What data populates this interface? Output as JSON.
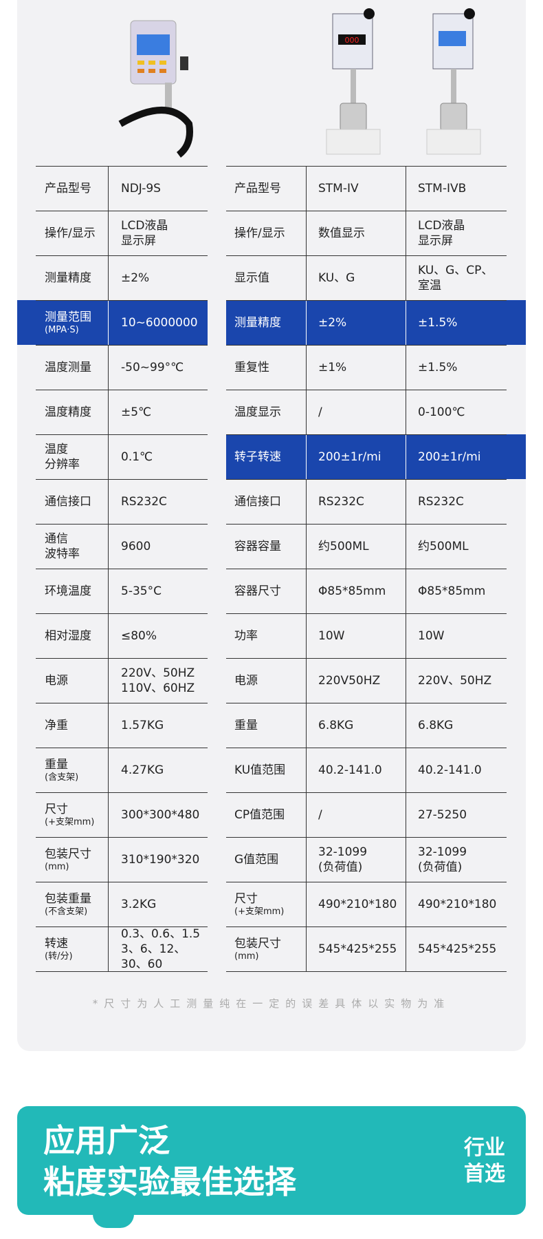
{
  "left_table": {
    "rows": [
      {
        "label": [
          "产品型号"
        ],
        "value": [
          "NDJ-9S"
        ]
      },
      {
        "label": [
          "操作/显示"
        ],
        "value": [
          "LCD液晶",
          "显示屏"
        ]
      },
      {
        "label": [
          "测量精度"
        ],
        "value": [
          "±2%"
        ]
      },
      {
        "label": [
          "测量范围"
        ],
        "note": "(MPA·S)",
        "value": [
          "10~6000000"
        ],
        "highlight": true
      },
      {
        "label": [
          "温度测量"
        ],
        "value": [
          "-50~99°℃"
        ]
      },
      {
        "label": [
          "温度精度"
        ],
        "value": [
          "±5℃"
        ]
      },
      {
        "label": [
          "温度",
          "分辨率"
        ],
        "value": [
          "0.1℃"
        ]
      },
      {
        "label": [
          "通信接口"
        ],
        "value": [
          "RS232C"
        ]
      },
      {
        "label": [
          "通信",
          "波特率"
        ],
        "value": [
          "9600"
        ]
      },
      {
        "label": [
          "环境温度"
        ],
        "value": [
          "5-35°C"
        ]
      },
      {
        "label": [
          "相对湿度"
        ],
        "value": [
          "≤80%"
        ]
      },
      {
        "label": [
          "电源"
        ],
        "value": [
          "220V、50HZ",
          "110V、60HZ"
        ]
      },
      {
        "label": [
          "净重"
        ],
        "value": [
          "1.57KG"
        ]
      },
      {
        "label": [
          "重量"
        ],
        "note": "(含支架)",
        "value": [
          "4.27KG"
        ]
      },
      {
        "label": [
          "尺寸"
        ],
        "note": "(+支架mm)",
        "value": [
          "300*300*480"
        ]
      },
      {
        "label": [
          "包装尺寸"
        ],
        "note": "(mm)",
        "value": [
          "310*190*320"
        ]
      },
      {
        "label": [
          "包装重量"
        ],
        "note": "(不含支架)",
        "value": [
          "3.2KG"
        ]
      },
      {
        "label": [
          "转速"
        ],
        "note": "(转/分)",
        "value": [
          "0.3、0.6、1.5",
          "3、6、12、",
          "30、60"
        ]
      }
    ]
  },
  "right_table": {
    "rows": [
      {
        "label": [
          "产品型号"
        ],
        "values": [
          [
            "STM-IV"
          ],
          [
            "STM-IVB"
          ]
        ]
      },
      {
        "label": [
          "操作/显示"
        ],
        "values": [
          [
            "数值显示"
          ],
          [
            "LCD液晶",
            "显示屏"
          ]
        ]
      },
      {
        "label": [
          "显示值"
        ],
        "values": [
          [
            "KU、G"
          ],
          [
            "KU、G、CP、",
            "室温"
          ]
        ]
      },
      {
        "label": [
          "测量精度"
        ],
        "values": [
          [
            "±2%"
          ],
          [
            "±1.5%"
          ]
        ],
        "highlight": true
      },
      {
        "label": [
          "重复性"
        ],
        "values": [
          [
            "±1%"
          ],
          [
            "±1.5%"
          ]
        ]
      },
      {
        "label": [
          "温度显示"
        ],
        "values": [
          [
            "/"
          ],
          [
            "0-100℃"
          ]
        ]
      },
      {
        "label": [
          "转子转速"
        ],
        "values": [
          [
            "200±1r/mi"
          ],
          [
            "200±1r/mi"
          ]
        ],
        "highlight": true
      },
      {
        "label": [
          "通信接口"
        ],
        "values": [
          [
            "RS232C"
          ],
          [
            "RS232C"
          ]
        ]
      },
      {
        "label": [
          "容器容量"
        ],
        "values": [
          [
            "约500ML"
          ],
          [
            "约500ML"
          ]
        ]
      },
      {
        "label": [
          "容器尺寸"
        ],
        "values": [
          [
            "Φ85*85mm"
          ],
          [
            "Φ85*85mm"
          ]
        ]
      },
      {
        "label": [
          "功率"
        ],
        "values": [
          [
            "10W"
          ],
          [
            "10W"
          ]
        ]
      },
      {
        "label": [
          "电源"
        ],
        "values": [
          [
            "220V50HZ"
          ],
          [
            "220V、50HZ"
          ]
        ]
      },
      {
        "label": [
          "重量"
        ],
        "values": [
          [
            "6.8KG"
          ],
          [
            "6.8KG"
          ]
        ]
      },
      {
        "label": [
          "KU值范围"
        ],
        "values": [
          [
            "40.2-141.0"
          ],
          [
            "40.2-141.0"
          ]
        ]
      },
      {
        "label": [
          "CP值范围"
        ],
        "values": [
          [
            "/"
          ],
          [
            "27-5250"
          ]
        ]
      },
      {
        "label": [
          "G值范围"
        ],
        "values": [
          [
            "32-1099",
            "(负荷值)"
          ],
          [
            "32-1099",
            "(负荷值)"
          ]
        ]
      },
      {
        "label": [
          "尺寸"
        ],
        "note": "(+支架mm)",
        "values": [
          [
            "490*210*180"
          ],
          [
            "490*210*180"
          ]
        ]
      },
      {
        "label": [
          "包装尺寸"
        ],
        "note": "(mm)",
        "values": [
          [
            "545*425*255"
          ],
          [
            "545*425*255"
          ]
        ]
      }
    ]
  },
  "footnote": "*尺寸为人工测量纯在一定的误差具体以实物为准",
  "banner": {
    "lines": [
      "应用广泛",
      "粘度实验最佳选择"
    ],
    "badge": [
      "行业",
      "首选"
    ]
  }
}
